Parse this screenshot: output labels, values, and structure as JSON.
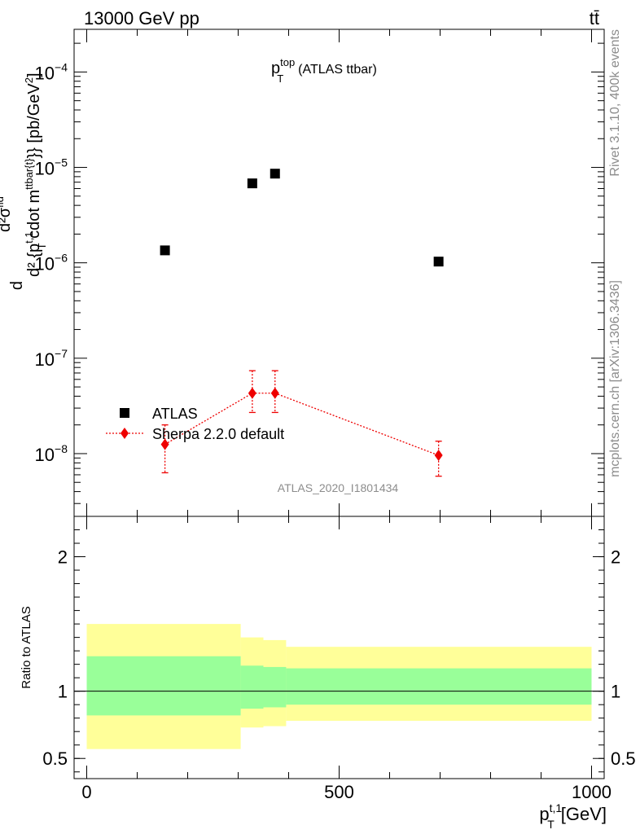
{
  "header": {
    "left": "13000 GeV pp",
    "right": "tt̄"
  },
  "side_labels": {
    "rivet": "Rivet 3.1.10,  400k events",
    "mcplots": "mcplots.cern.ch [arXiv:1306.3436]"
  },
  "analysis_id": "ATLAS_2020_I1801434",
  "chart_data": [
    {
      "type": "scatter",
      "title": "p_T^top (ATLAS ttbar)",
      "title_main": "p",
      "title_sub": "T",
      "title_sup": "top",
      "title_rest": "(ATLAS ttbar)",
      "ylabel": "d²σ^fid / d²{p_T^t,1 cdot m^ttbar{t}}} [pb/GeV²]",
      "ylabel_parts": {
        "d": "d",
        "numerator": "d²σ",
        "numerator_sup": "fid",
        "denominator": "d² {p",
        "denominator_sub": "T",
        "denominator_sup": "t,1",
        "denominator_rest": " cdot m",
        "m_sup": "ttbar{t}",
        "tail": "}} [pb/GeV",
        "tail_sup": "2",
        "close": "]"
      },
      "yscale": "log",
      "ylim": [
        2.2e-09,
        0.00028
      ],
      "xlim": [
        -25,
        1025
      ],
      "yticks": [
        {
          "value": 1e-08,
          "base": "10",
          "exp": "−8"
        },
        {
          "value": 1e-07,
          "base": "10",
          "exp": "−7"
        },
        {
          "value": 1e-06,
          "base": "10",
          "exp": "−6"
        },
        {
          "value": 1e-05,
          "base": "10",
          "exp": "−5"
        },
        {
          "value": 0.0001,
          "base": "10",
          "exp": "−4"
        }
      ],
      "legend_position": "bottom-left",
      "series": [
        {
          "name": "ATLAS",
          "color": "#000000",
          "marker": "square",
          "points": [
            {
              "x": 155,
              "y": 1.35e-06
            },
            {
              "x": 328,
              "y": 6.8e-06
            },
            {
              "x": 373,
              "y": 8.6e-06
            },
            {
              "x": 697,
              "y": 1.03e-06
            }
          ]
        },
        {
          "name": "Sherpa 2.2.0 default",
          "color": "#ee0000",
          "marker": "diamond",
          "line": "dotted",
          "points": [
            {
              "x": 155,
              "y": 1.25e-08,
              "ylo": 6.3e-09,
              "yhi": 2e-08
            },
            {
              "x": 328,
              "y": 4.3e-08,
              "ylo": 2.7e-08,
              "yhi": 7.4e-08
            },
            {
              "x": 373,
              "y": 4.3e-08,
              "ylo": 2.7e-08,
              "yhi": 7.4e-08
            },
            {
              "x": 697,
              "y": 9.6e-09,
              "ylo": 5.8e-09,
              "yhi": 1.35e-08
            }
          ]
        }
      ]
    },
    {
      "type": "area",
      "ylabel": "Ratio to ATLAS",
      "xlabel": "p_T^t,1 [GeV]",
      "xlabel_main": "p",
      "xlabel_sub": "T",
      "xlabel_sup": "t,1",
      "xlabel_rest": "[GeV]",
      "xlim": [
        -25,
        1025
      ],
      "ylim": [
        0.35,
        2.3
      ],
      "xticks": [
        {
          "value": 0,
          "label": "0"
        },
        {
          "value": 500,
          "label": "500"
        },
        {
          "value": 1000,
          "label": "1000"
        }
      ],
      "yticks": [
        {
          "value": 0.5,
          "label": "0.5"
        },
        {
          "value": 1,
          "label": "1"
        },
        {
          "value": 2,
          "label": "2"
        }
      ],
      "reference_line": 1,
      "bands": [
        {
          "name": "inner",
          "color": "#99ff99",
          "bins": [
            {
              "x0": 0,
              "x1": 305,
              "lo": 0.82,
              "hi": 1.26
            },
            {
              "x0": 305,
              "x1": 350,
              "lo": 0.87,
              "hi": 1.19
            },
            {
              "x0": 350,
              "x1": 395,
              "lo": 0.88,
              "hi": 1.18
            },
            {
              "x0": 395,
              "x1": 1000,
              "lo": 0.9,
              "hi": 1.17
            }
          ]
        },
        {
          "name": "outer",
          "color": "#ffff99",
          "bins": [
            {
              "x0": 0,
              "x1": 305,
              "lo": 0.57,
              "hi": 1.5
            },
            {
              "x0": 305,
              "x1": 350,
              "lo": 0.73,
              "hi": 1.4
            },
            {
              "x0": 350,
              "x1": 395,
              "lo": 0.74,
              "hi": 1.38
            },
            {
              "x0": 395,
              "x1": 1000,
              "lo": 0.78,
              "hi": 1.33
            }
          ]
        }
      ]
    }
  ]
}
